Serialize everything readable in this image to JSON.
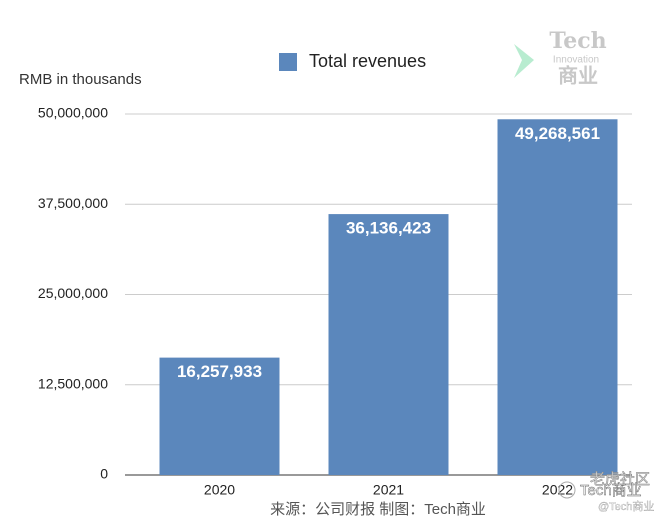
{
  "chart_data": {
    "type": "bar",
    "y_axis_label": "RMB in thousands",
    "categories": [
      "2020",
      "2021",
      "2022"
    ],
    "series": [
      {
        "name": "Total revenues",
        "color": "#5b87bc",
        "values": [
          16257933,
          36136423,
          49268561
        ],
        "value_labels": [
          "16,257,933",
          "36,136,423",
          "49,268,561"
        ]
      }
    ],
    "ylim": [
      0,
      50000000
    ],
    "yticks": [
      0,
      {
        "value": 12500000,
        "label": "12,500,000"
      },
      {
        "value": 25000000,
        "label": "25,000,000"
      },
      {
        "value": 37500000,
        "label": "37,500,000"
      },
      {
        "value": 50000000,
        "label": "50,000,000"
      }
    ],
    "grid": true,
    "legend": "top",
    "source": "来源：公司财报 制图：Tech商业",
    "watermark": {
      "logo_title": "Tech",
      "logo_subtitle": "Innovation",
      "logo_cn": "商业",
      "corner_top": "老虎社区",
      "corner_bottom": "@Tech商业",
      "corner_main": "Tech商业"
    }
  }
}
